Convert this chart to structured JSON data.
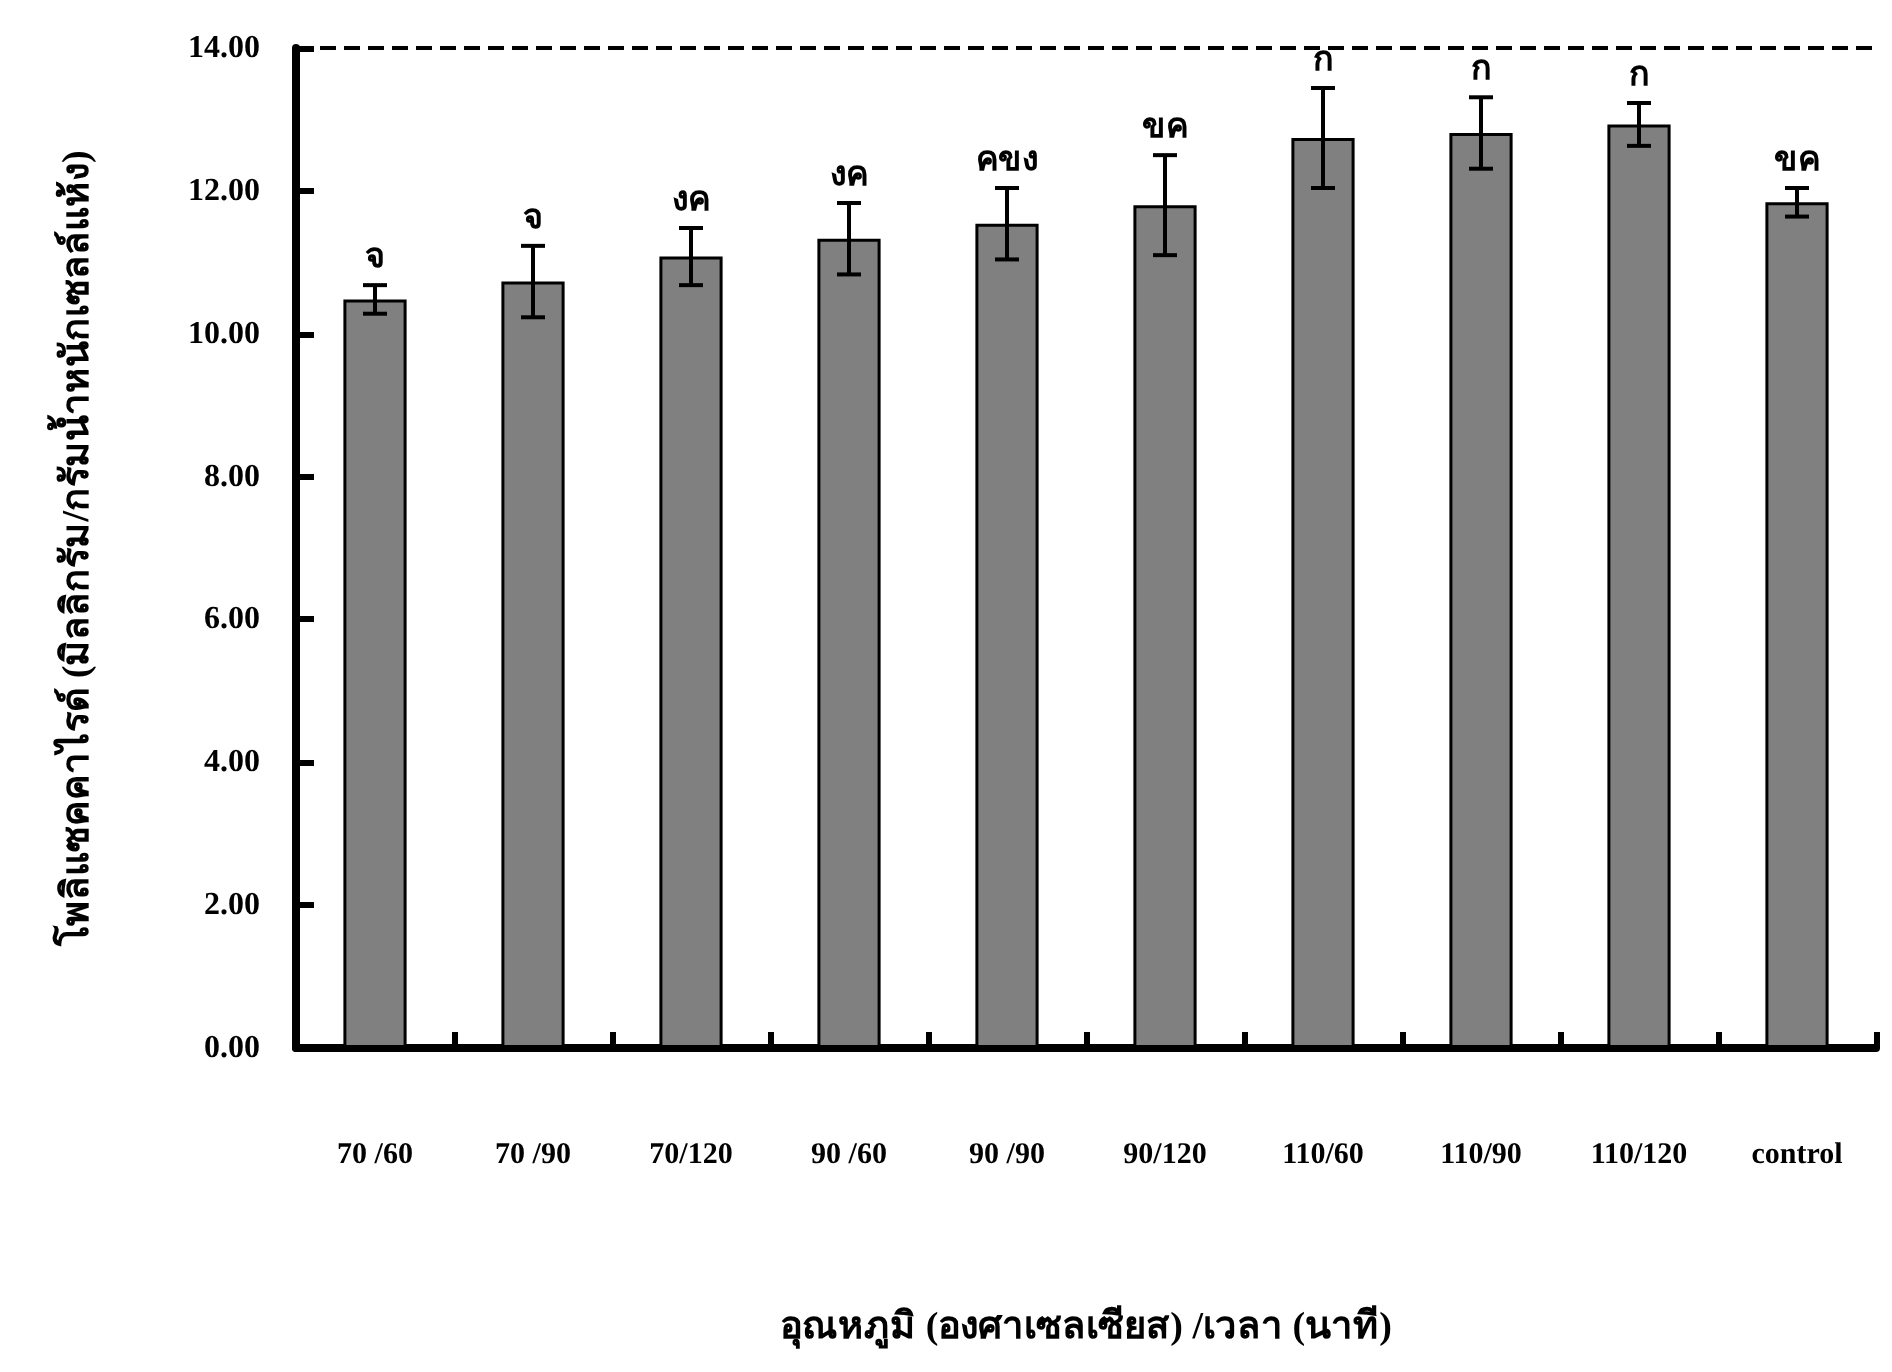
{
  "chart_data": {
    "type": "bar",
    "xlabel": "อุณหภูมิ (องศาเซลเซียส) /เวลา (นาที)",
    "ylabel": "โพลิแซคคาไรด์ (มิลลิกรัม/กรัมน้ำหนักเซลล์แห้ง)",
    "categories": [
      "70 /60",
      "70 /90",
      "70/120",
      "90 /60",
      "90 /90",
      "90/120",
      "110/60",
      "110/90",
      "110/120",
      "control"
    ],
    "values": [
      10.48,
      10.73,
      11.08,
      11.33,
      11.54,
      11.8,
      12.74,
      12.81,
      12.93,
      11.84
    ],
    "errors": [
      0.2,
      0.5,
      0.4,
      0.5,
      0.5,
      0.7,
      0.7,
      0.5,
      0.3,
      0.2
    ],
    "value_labels": [
      "จ",
      "จ",
      "งค",
      "งค",
      "คขง",
      "ขค",
      "ก",
      "ก",
      "ก",
      "ขค"
    ],
    "color": "#808080",
    "ylim": [
      0,
      14
    ],
    "yticks": [
      {
        "value": 0,
        "label": "0.00"
      },
      {
        "value": 2,
        "label": "2.00"
      },
      {
        "value": 4,
        "label": "4.00"
      },
      {
        "value": 6,
        "label": "6.00"
      },
      {
        "value": 8,
        "label": "8.00"
      },
      {
        "value": 10,
        "label": "10.00"
      },
      {
        "value": 12,
        "label": "12.00"
      },
      {
        "value": 14,
        "label": "14.00"
      }
    ],
    "ref_lines": [
      {
        "axis": "y",
        "value": 14,
        "line_style": "dashed",
        "color": "#000000"
      }
    ],
    "grid": false
  }
}
